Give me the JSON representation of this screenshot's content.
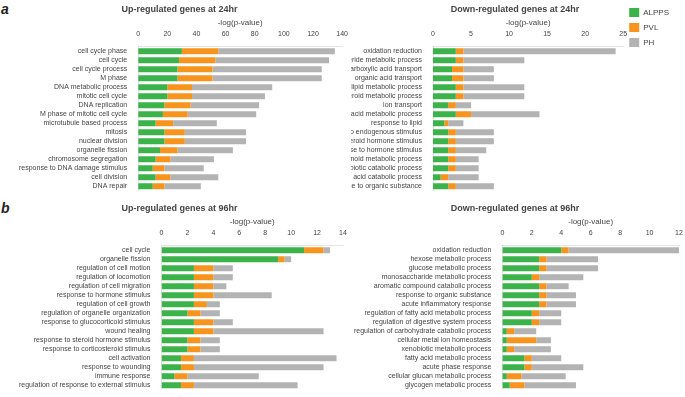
{
  "chart_data": [
    {
      "type": "bar",
      "orientation": "horizontal",
      "stacked": true,
      "grid": false,
      "title": "Up-regulated genes at 24hr",
      "xlabel": "-log(p-value)",
      "annotations": [
        "a"
      ],
      "categories": [
        "cell cycle phase",
        "cell cycle",
        "cell cycle process",
        "M phase",
        "DNA metabolic process",
        "mitotic cell cycle",
        "DNA replication",
        "M phase of mitotic cell cycle",
        "microtubule based process",
        "mitosis",
        "nuclear division",
        "organelle fission",
        "chromosome segregation",
        "response to DNA damage stimulus",
        "cell division",
        "DNA repair"
      ],
      "series": [
        {
          "name": "ALPPS",
          "color": "#3cb34a",
          "values": [
            30,
            28,
            27,
            27,
            20,
            20,
            18,
            17,
            12,
            18,
            18,
            15,
            12,
            10,
            12,
            10
          ]
        },
        {
          "name": "PVL",
          "color": "#f7941d",
          "values": [
            25,
            25,
            24,
            24,
            17,
            17,
            18,
            17,
            12,
            14,
            14,
            12,
            10,
            8,
            10,
            8
          ]
        },
        {
          "name": "PH",
          "color": "#b3b3b3",
          "values": [
            80,
            78,
            75,
            75,
            55,
            50,
            47,
            47,
            30,
            42,
            42,
            38,
            30,
            27,
            33,
            25
          ]
        }
      ],
      "xlim": [
        0,
        140
      ],
      "xticks": [
        0,
        20,
        40,
        60,
        80,
        100,
        120,
        140
      ]
    },
    {
      "type": "bar",
      "orientation": "horizontal",
      "stacked": true,
      "grid": false,
      "legend": "right",
      "title": "Down-regulated genes at 24hr",
      "xlabel": "-log(p-value)",
      "categories": [
        "oxidation reduction",
        "triglyceride metabolic process",
        "carboxylic acid transport",
        "organic acid transport",
        "glycerolipid metabolic process",
        "steroid metabolic process",
        "ion transport",
        "fatty acid metabolic process",
        "response to lipid",
        "response to endogenous stimulus",
        "response to steroid hormone stimulus",
        "response to hormone stimulus",
        "icosanoid metabolic process",
        "xenobiotic catabolic process",
        "cellular amino acid catabolic process",
        "response to organic substance"
      ],
      "series": [
        {
          "name": "ALPPS",
          "color": "#3cb34a",
          "values": [
            3.0,
            3.0,
            2.5,
            2.5,
            3.0,
            3.0,
            2.0,
            3.0,
            1.5,
            2.0,
            2.0,
            2.0,
            2.0,
            2.0,
            1.0,
            2.0
          ]
        },
        {
          "name": "PVL",
          "color": "#f7941d",
          "values": [
            1.0,
            1.0,
            1.5,
            1.5,
            1.0,
            1.0,
            1.0,
            2.0,
            0.5,
            1.0,
            1.0,
            1.0,
            1.0,
            1.0,
            1.0,
            1.0
          ]
        },
        {
          "name": "PH",
          "color": "#b3b3b3",
          "values": [
            20.0,
            8.0,
            4.0,
            4.0,
            8.0,
            8.0,
            2.0,
            9.0,
            2.0,
            5.0,
            5.0,
            4.0,
            3.0,
            3.0,
            4.0,
            5.0
          ]
        }
      ],
      "xlim": [
        0,
        25
      ],
      "xticks": [
        0,
        5,
        10,
        15,
        20,
        25
      ]
    },
    {
      "type": "bar",
      "orientation": "horizontal",
      "stacked": true,
      "grid": false,
      "title": "Up-regulated genes at 96hr",
      "xlabel": "-log(p-value)",
      "annotations": [
        "b"
      ],
      "categories": [
        "cell cycle",
        "organelle fission",
        "regulation of cell motion",
        "regulation of locomotion",
        "regulation of cell migration",
        "response to hormone stimulus",
        "regulation of cell growth",
        "regulation of organelle organization",
        "response to glucocorticoid stimulus",
        "wound healing",
        "response to steroid hormone stimulus",
        "response to corticosteroid stimulus",
        "cell activation",
        "response to wounding",
        "immune response",
        "regulation of response to external stimulus"
      ],
      "series": [
        {
          "name": "ALPPS",
          "color": "#3cb34a",
          "values": [
            11.0,
            9.0,
            2.5,
            2.5,
            2.5,
            2.5,
            2.5,
            2.0,
            2.5,
            2.5,
            2.0,
            2.0,
            1.5,
            1.5,
            1.0,
            1.5
          ]
        },
        {
          "name": "PVL",
          "color": "#f7941d",
          "values": [
            1.5,
            0.5,
            1.5,
            1.5,
            1.5,
            1.5,
            1.0,
            1.0,
            1.5,
            1.5,
            1.0,
            1.0,
            1.0,
            1.0,
            1.0,
            1.0
          ]
        },
        {
          "name": "PH",
          "color": "#b3b3b3",
          "values": [
            0.5,
            0.5,
            1.5,
            1.5,
            1.0,
            4.5,
            1.0,
            1.5,
            1.5,
            8.5,
            1.5,
            1.5,
            11.0,
            10.0,
            5.5,
            8.0
          ]
        }
      ],
      "xlim": [
        0,
        14
      ],
      "xticks": [
        0,
        2,
        4,
        6,
        8,
        10,
        12,
        14
      ]
    },
    {
      "type": "bar",
      "orientation": "horizontal",
      "stacked": true,
      "grid": false,
      "title": "Down-regulated genes at 96hr",
      "xlabel": "-log(p-value)",
      "categories": [
        "oxidation reduction",
        "hexose metabolic process",
        "glucose metabolic process",
        "monosaccharide metabolic process",
        "aromatic compound catabolic process",
        "response to organic substance",
        "acute inflammatory response",
        "regulation of fatty acid metabolic process",
        "regulation of digestive system process",
        "regulation of carbohydrate catabolic process",
        "cellular metal ion homeostasis",
        "xenobiotic metabolic process",
        "fatty acid metabolic process",
        "acute phase response",
        "cellular glucan metabolic process",
        "glycogen metabolic process"
      ],
      "series": [
        {
          "name": "ALPPS",
          "color": "#3cb34a",
          "values": [
            4.0,
            2.5,
            2.5,
            2.0,
            2.5,
            2.5,
            2.5,
            2.0,
            2.0,
            0.3,
            0.3,
            0.3,
            1.5,
            1.5,
            0.3,
            0.5
          ]
        },
        {
          "name": "PVL",
          "color": "#f7941d",
          "values": [
            0.5,
            0.5,
            0.5,
            0.5,
            0.5,
            0.5,
            0.5,
            0.5,
            0.5,
            0.5,
            2.0,
            0.5,
            0.5,
            0.5,
            1.0,
            1.0
          ]
        },
        {
          "name": "PH",
          "color": "#b3b3b3",
          "values": [
            7.5,
            3.5,
            3.5,
            3.0,
            1.5,
            2.0,
            2.0,
            1.5,
            1.5,
            1.5,
            1.0,
            2.5,
            2.0,
            3.5,
            3.0,
            3.5
          ]
        }
      ],
      "xlim": [
        0,
        12
      ],
      "xticks": [
        0,
        2,
        4,
        6,
        8,
        10,
        12
      ]
    }
  ]
}
